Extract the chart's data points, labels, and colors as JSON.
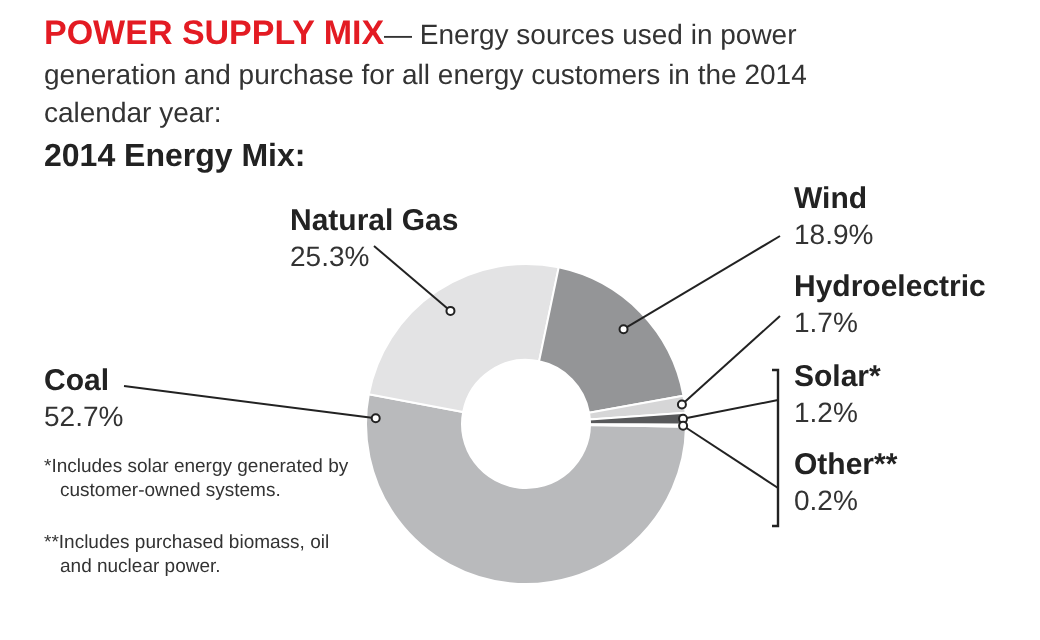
{
  "chart_data": {
    "type": "donut",
    "title": "POWER SUPPLY MIX",
    "subtitle": "— Energy sources used in power generation and purchase for all energy customers in the 2014 calendar year:",
    "annotations": [
      "2014 Energy Mix:",
      "*Includes solar energy generated by customer-owned systems.",
      "**Includes purchased biomass, oil and nuclear power."
    ],
    "categories": [
      "Coal",
      "Natural Gas",
      "Wind",
      "Hydroelectric",
      "Solar*",
      "Other**"
    ],
    "values": [
      52.7,
      25.3,
      18.9,
      1.7,
      1.2,
      0.2
    ],
    "value_labels": [
      "52.7%",
      "25.3%",
      "18.9%",
      "1.7%",
      "1.2%",
      "0.2%"
    ],
    "colors": [
      "#b9babc",
      "#e3e3e4",
      "#949597",
      "#d6d6d7",
      "#58595b",
      "#3a3a3c"
    ]
  }
}
